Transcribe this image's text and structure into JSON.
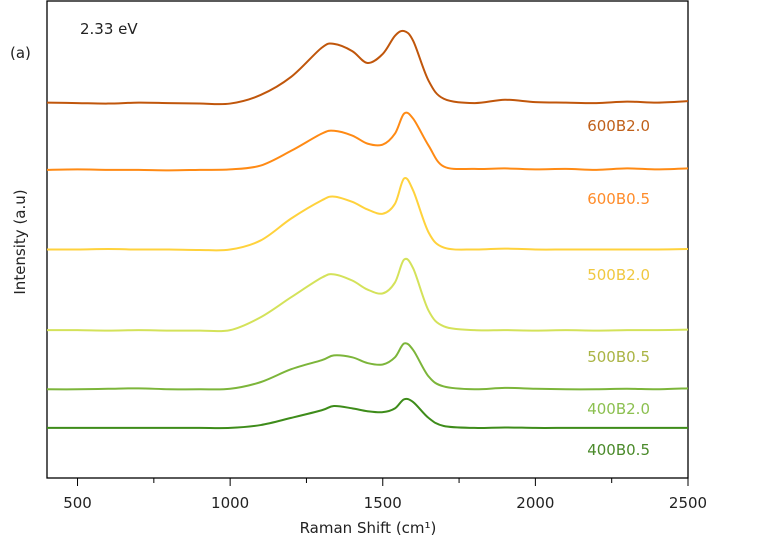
{
  "chart_data": {
    "type": "line",
    "title": "",
    "xlabel": "Raman Shift (cm¹)",
    "ylabel": "Intensity (a.u)",
    "xlim": [
      400,
      2500
    ],
    "ylim": [
      0,
      100
    ],
    "x_ticks": [
      500,
      1000,
      1500,
      2000,
      2500
    ],
    "x_minor_ticks": [
      750,
      1250,
      1750,
      2250
    ],
    "y_ticks_shown": false,
    "grid": false,
    "annotations": {
      "panel": "(a)",
      "energy": "2.33 eV"
    },
    "x": [
      400,
      500,
      600,
      700,
      800,
      900,
      1000,
      1100,
      1200,
      1300,
      1340,
      1400,
      1450,
      1500,
      1540,
      1570,
      1600,
      1650,
      1700,
      1800,
      1900,
      2000,
      2100,
      2200,
      2300,
      2400,
      2500
    ],
    "series": [
      {
        "name": "600B2.0",
        "color": "#c0560b",
        "label_color": "#c0601a",
        "values": [
          78.7,
          78.6,
          78.5,
          78.7,
          78.6,
          78.5,
          78.5,
          80.3,
          84.1,
          90.2,
          91.0,
          89.5,
          87.0,
          88.9,
          92.7,
          93.7,
          91.6,
          83.3,
          79.5,
          78.6,
          79.3,
          78.8,
          78.7,
          78.6,
          78.9,
          78.7,
          79.0
        ]
      },
      {
        "name": "600B0.5",
        "color": "#ff8a14",
        "label_color": "#ff8c2a",
        "values": [
          64.6,
          64.7,
          64.6,
          64.6,
          64.5,
          64.6,
          64.7,
          65.5,
          68.6,
          72.2,
          72.8,
          71.8,
          70.1,
          69.9,
          72.2,
          76.4,
          75.3,
          69.7,
          65.3,
          64.8,
          64.9,
          64.7,
          64.8,
          64.6,
          64.9,
          64.7,
          64.9
        ]
      },
      {
        "name": "500B2.0",
        "color": "#ffd23c",
        "label_color": "#f0c840",
        "values": [
          47.9,
          47.9,
          48.0,
          47.9,
          47.9,
          47.8,
          47.9,
          49.8,
          54.4,
          58.2,
          59.0,
          57.9,
          56.3,
          55.4,
          57.5,
          62.8,
          60.2,
          51.5,
          48.3,
          47.9,
          48.1,
          47.9,
          47.9,
          47.9,
          47.9,
          47.9,
          48.0
        ]
      },
      {
        "name": "500B0.5",
        "color": "#d4e25a",
        "label_color": "#aab444",
        "values": [
          31.0,
          31.0,
          30.9,
          31.0,
          30.9,
          30.9,
          31.0,
          33.7,
          37.9,
          42.0,
          42.7,
          41.4,
          39.5,
          38.7,
          41.0,
          45.8,
          43.9,
          35.1,
          31.8,
          31.0,
          31.0,
          30.9,
          31.0,
          30.9,
          31.0,
          31.0,
          31.1
        ]
      },
      {
        "name": "400B2.0",
        "color": "#7cb53a",
        "label_color": "#8cc050",
        "values": [
          18.6,
          18.6,
          18.7,
          18.8,
          18.6,
          18.6,
          18.7,
          20.1,
          22.8,
          24.7,
          25.7,
          25.3,
          24.1,
          23.8,
          25.3,
          28.2,
          26.8,
          21.3,
          19.2,
          18.6,
          18.9,
          18.7,
          18.6,
          18.6,
          18.7,
          18.6,
          18.8
        ]
      },
      {
        "name": "400B0.5",
        "color": "#3e8c1a",
        "label_color": "#4a8a2a",
        "values": [
          10.5,
          10.5,
          10.5,
          10.5,
          10.5,
          10.5,
          10.5,
          11.1,
          12.6,
          14.2,
          15.1,
          14.6,
          14.0,
          13.8,
          14.6,
          16.5,
          15.9,
          12.6,
          10.9,
          10.5,
          10.6,
          10.5,
          10.5,
          10.5,
          10.5,
          10.5,
          10.5
        ]
      }
    ]
  }
}
